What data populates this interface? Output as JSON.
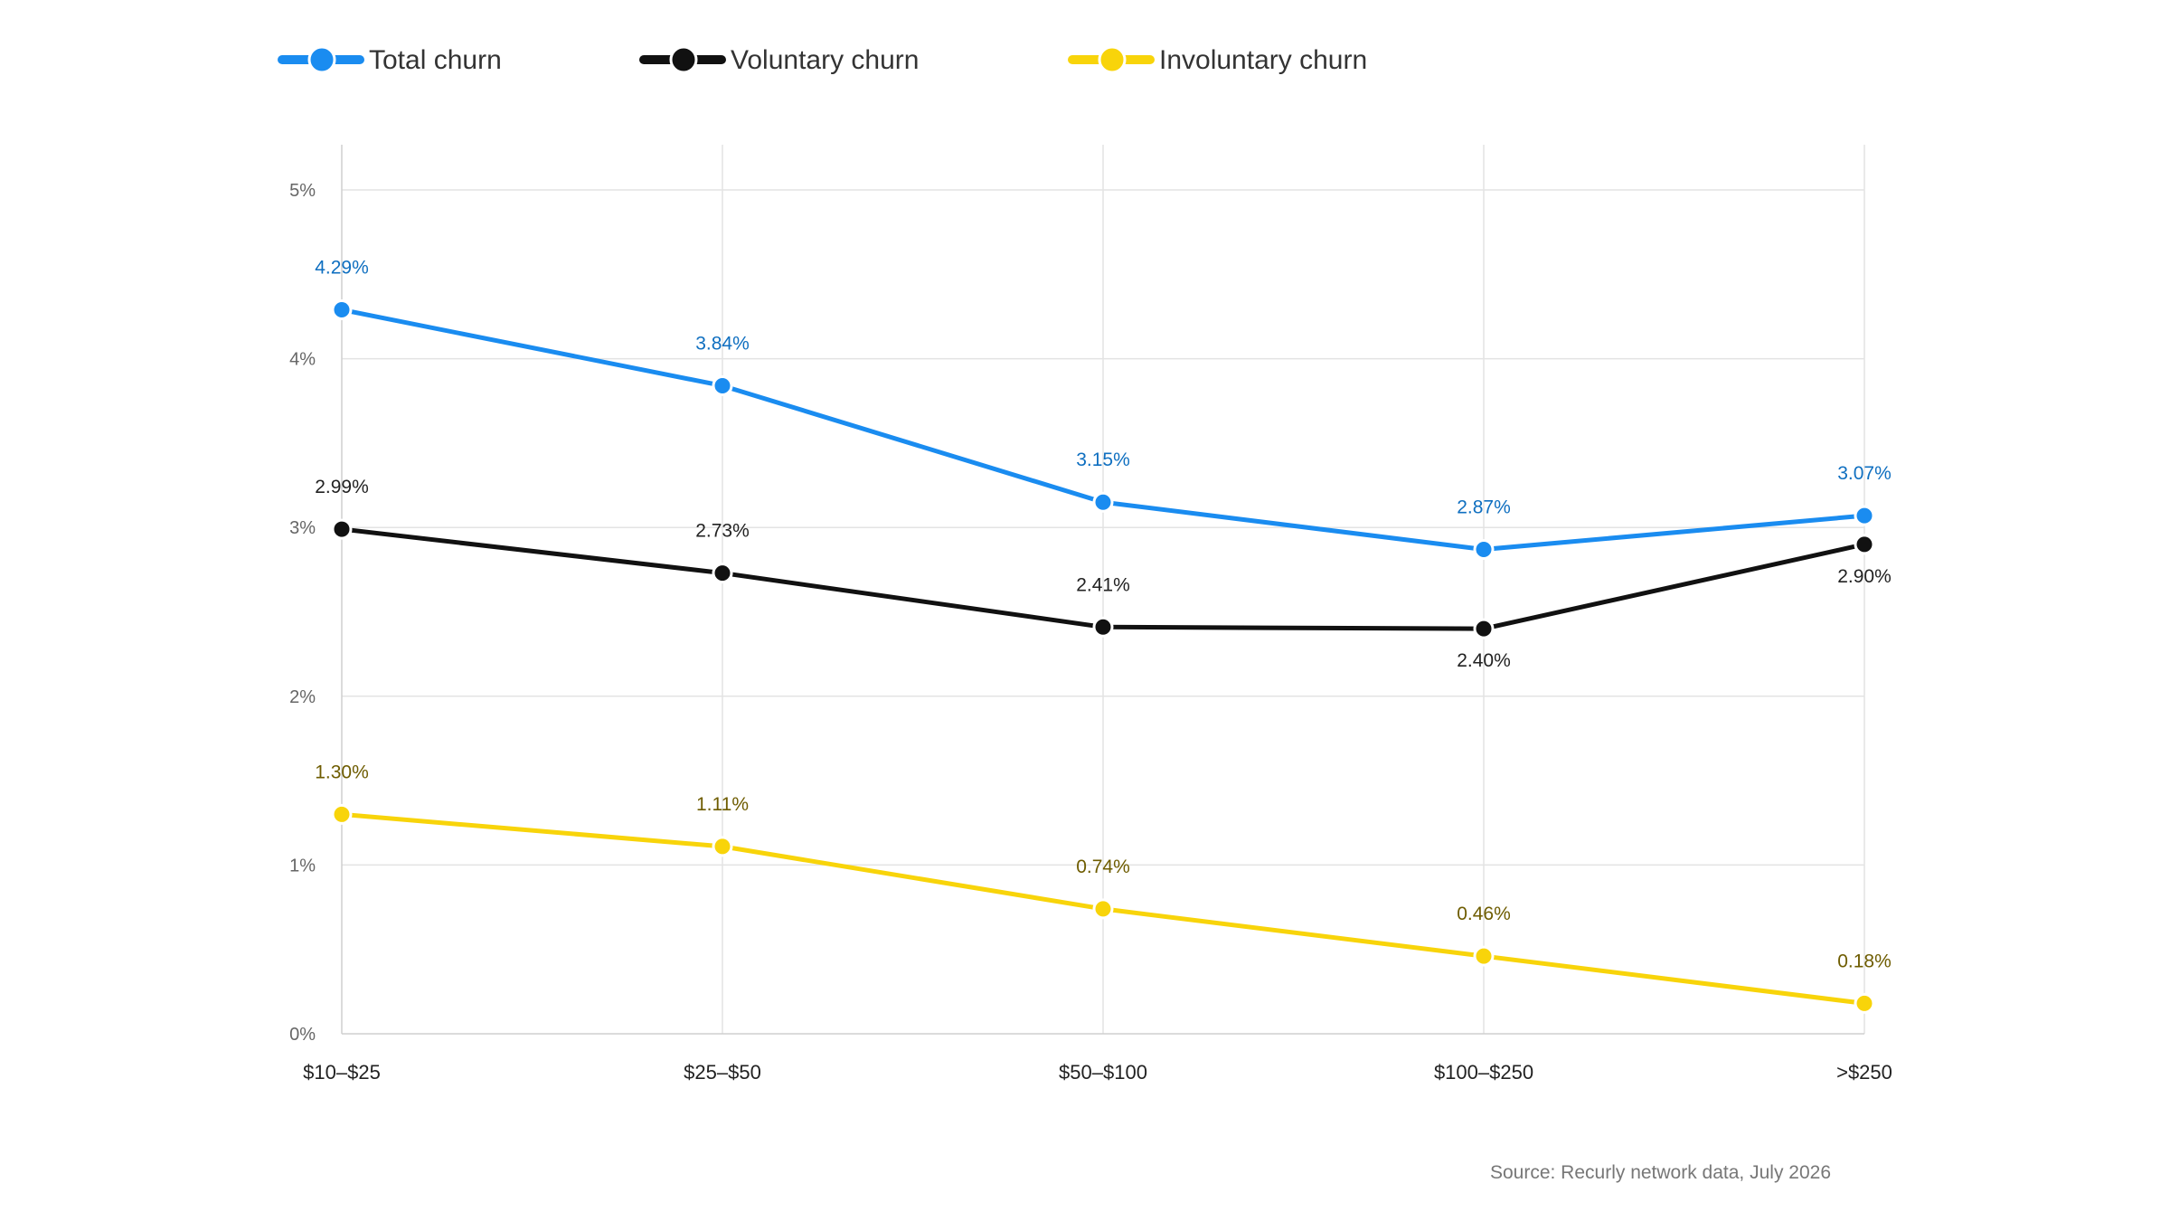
{
  "chart_data": {
    "type": "line",
    "title": "",
    "xlabel": "",
    "ylabel": "",
    "categories": [
      "$10–$25",
      "$25–$50",
      "$50–$100",
      "$100–$250",
      ">$250"
    ],
    "ylim": [
      0,
      5
    ],
    "yticks": [
      {
        "value": 0,
        "label": "0%"
      },
      {
        "value": 1,
        "label": "1%"
      },
      {
        "value": 2,
        "label": "2%"
      },
      {
        "value": 3,
        "label": "3%"
      },
      {
        "value": 4,
        "label": "4%"
      },
      {
        "value": 5,
        "label": "5%"
      }
    ],
    "grid": true,
    "legend_position": "top-left",
    "series": [
      {
        "name": "Total churn",
        "color": "#1a8cf0",
        "label_color": "#0f6fc0",
        "values": [
          4.29,
          3.84,
          3.15,
          2.87,
          3.07
        ],
        "labels": [
          "4.29%",
          "3.84%",
          "3.15%",
          "2.87%",
          "3.07%"
        ],
        "label_side": [
          "above",
          "above",
          "above",
          "above",
          "above"
        ]
      },
      {
        "name": "Voluntary churn",
        "color": "#111111",
        "label_color": "#222222",
        "values": [
          2.99,
          2.73,
          2.41,
          2.4,
          2.9
        ],
        "labels": [
          "2.99%",
          "2.73%",
          "2.41%",
          "2.40%",
          "2.90%"
        ],
        "label_side": [
          "above",
          "above",
          "above",
          "below",
          "below"
        ]
      },
      {
        "name": "Involuntary churn",
        "color": "#f8d40a",
        "label_color": "#6e5c00",
        "values": [
          1.3,
          1.11,
          0.74,
          0.46,
          0.18
        ],
        "labels": [
          "1.30%",
          "1.11%",
          "0.74%",
          "0.46%",
          "0.18%"
        ],
        "label_side": [
          "above",
          "above",
          "above",
          "above",
          "above"
        ]
      }
    ],
    "source": "Source: Recurly network data, July 2026"
  }
}
